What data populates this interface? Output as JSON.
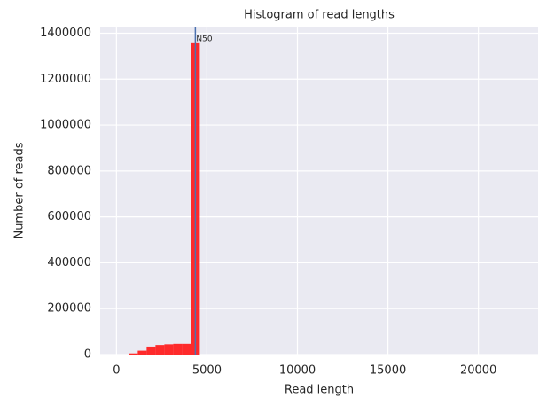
{
  "chart_data": {
    "type": "histogram",
    "title": "Histogram of read lengths",
    "x_label": "Read length",
    "y_label": "Number of reads",
    "bins": [
      686,
      1176,
      1666,
      2156,
      2646,
      3136,
      3626,
      4116,
      4606
    ],
    "values": [
      5000,
      17000,
      35000,
      42000,
      45000,
      47000,
      47000,
      1360000
    ],
    "color": "#ff2020",
    "xlim": [
      -900,
      23300
    ],
    "xticks": [
      0,
      5000,
      10000,
      15000,
      20000
    ],
    "ylim": [
      0,
      1425000
    ],
    "yticks": [
      0,
      200000,
      400000,
      600000,
      800000,
      1000000,
      1200000,
      1400000
    ],
    "grid": true,
    "vlines": [
      {
        "x": 4360,
        "label": "N50",
        "color": "#4c72b0"
      }
    ]
  }
}
